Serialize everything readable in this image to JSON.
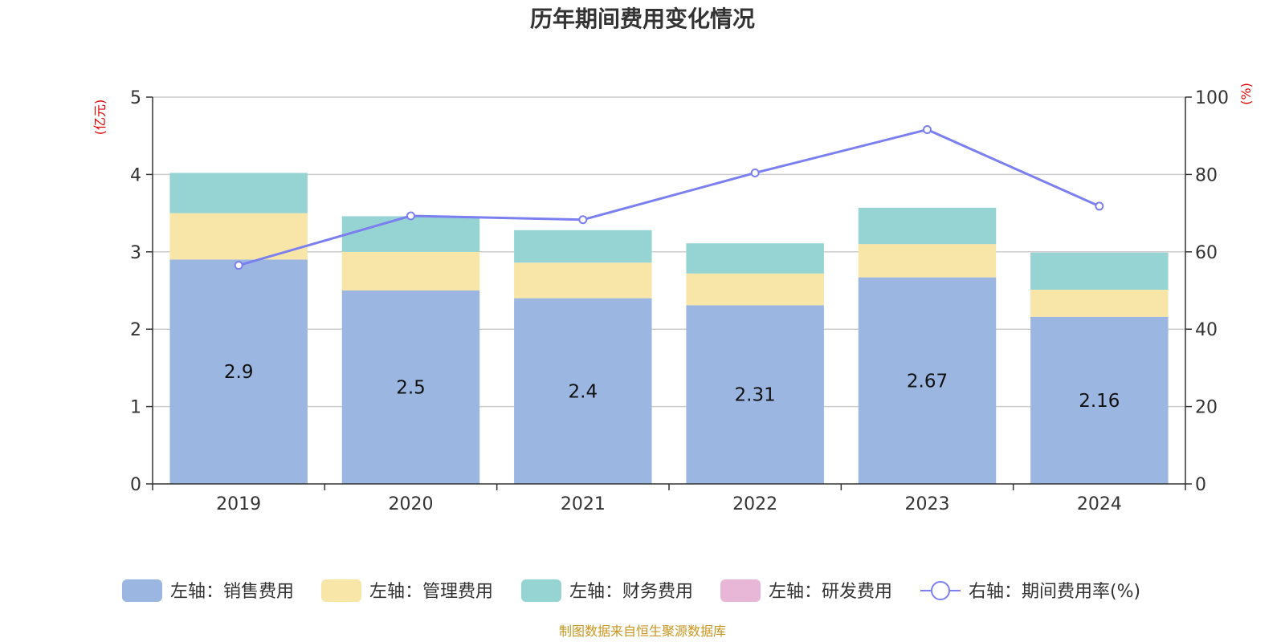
{
  "chart_data": {
    "type": "bar",
    "stacked": true,
    "title": "历年期间费用变化情况",
    "categories": [
      "2019",
      "2020",
      "2021",
      "2022",
      "2023",
      "2024"
    ],
    "left_axis": {
      "unit": "(亿元)",
      "ylim": [
        0,
        5
      ],
      "ticks": [
        0,
        1,
        2,
        3,
        4,
        5
      ]
    },
    "right_axis": {
      "unit": "(%)",
      "ylim": [
        0,
        100
      ],
      "ticks": [
        0,
        20,
        40,
        60,
        80,
        100
      ]
    },
    "grid": true,
    "legend_position": "bottom",
    "series": [
      {
        "name": "左轴：销售费用",
        "axis": "left",
        "type": "bar",
        "color": "#9ab6e1",
        "values": [
          2.9,
          2.5,
          2.4,
          2.31,
          2.67,
          2.16
        ],
        "show_labels": true
      },
      {
        "name": "左轴：管理费用",
        "axis": "left",
        "type": "bar",
        "color": "#f7e6a8",
        "values": [
          0.6,
          0.5,
          0.46,
          0.41,
          0.43,
          0.35
        ]
      },
      {
        "name": "左轴：财务费用",
        "axis": "left",
        "type": "bar",
        "color": "#96d4d3",
        "values": [
          0.52,
          0.46,
          0.42,
          0.39,
          0.47,
          0.48
        ]
      },
      {
        "name": "左轴：研发费用",
        "axis": "left",
        "type": "bar",
        "color": "#e8b7d7",
        "values": [
          0,
          0,
          0,
          0,
          0,
          0
        ]
      },
      {
        "name": "右轴：期间费用率(%)",
        "axis": "right",
        "type": "line",
        "color": "#7b7ff0",
        "values": [
          56.5,
          69.3,
          68.3,
          80.4,
          91.6,
          71.8
        ]
      }
    ],
    "labels": [
      "2.9",
      "2.5",
      "2.4",
      "2.31",
      "2.67",
      "2.16"
    ]
  },
  "source": "制图数据来自恒生聚源数据库"
}
